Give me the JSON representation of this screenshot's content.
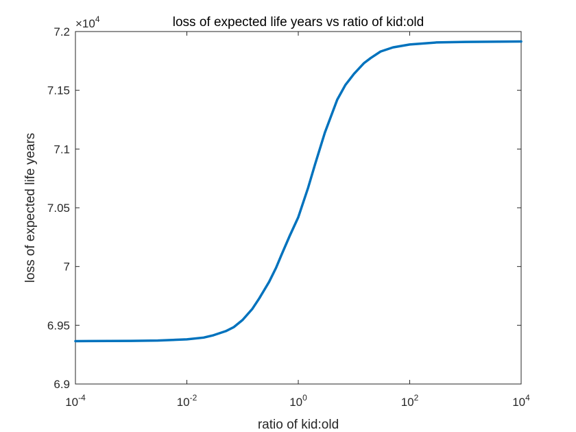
{
  "chart_data": {
    "type": "line",
    "title": "loss of expected life years vs ratio of kid:old",
    "xlabel": "ratio of kid:old",
    "ylabel": "loss of expected life years",
    "xscale": "log",
    "xlim": [
      0.0001,
      10000
    ],
    "ylim": [
      69000,
      72000
    ],
    "y_multiplier_label": "×10",
    "y_multiplier_exponent": "4",
    "x_ticks": [
      {
        "base": "10",
        "exp": "-4",
        "value": 0.0001
      },
      {
        "base": "10",
        "exp": "-2",
        "value": 0.01
      },
      {
        "base": "10",
        "exp": "0",
        "value": 1
      },
      {
        "base": "10",
        "exp": "2",
        "value": 100
      },
      {
        "base": "10",
        "exp": "4",
        "value": 10000
      }
    ],
    "y_ticks": [
      {
        "label": "6.9",
        "value": 69000
      },
      {
        "label": "6.95",
        "value": 69500
      },
      {
        "label": "7",
        "value": 70000
      },
      {
        "label": "7.05",
        "value": 70500
      },
      {
        "label": "7.1",
        "value": 71000
      },
      {
        "label": "7.15",
        "value": 71500
      },
      {
        "label": "7.2",
        "value": 72000
      }
    ],
    "grid": false,
    "series_color": "#0072BD",
    "series": [
      {
        "x": [
          0.0001,
          0.001,
          0.003,
          0.01,
          0.02,
          0.03,
          0.05,
          0.07,
          0.1,
          0.15,
          0.2,
          0.3,
          0.4,
          0.5,
          0.7,
          1,
          1.5,
          2,
          3,
          5,
          7,
          10,
          15,
          20,
          30,
          50,
          100,
          300,
          1000,
          10000
        ],
        "y": [
          69365,
          69367,
          69370,
          69380,
          69395,
          69415,
          69450,
          69485,
          69545,
          69640,
          69730,
          69870,
          69990,
          70100,
          70260,
          70420,
          70670,
          70870,
          71140,
          71420,
          71545,
          71640,
          71730,
          71775,
          71830,
          71865,
          71890,
          71907,
          71912,
          71915
        ]
      }
    ]
  }
}
